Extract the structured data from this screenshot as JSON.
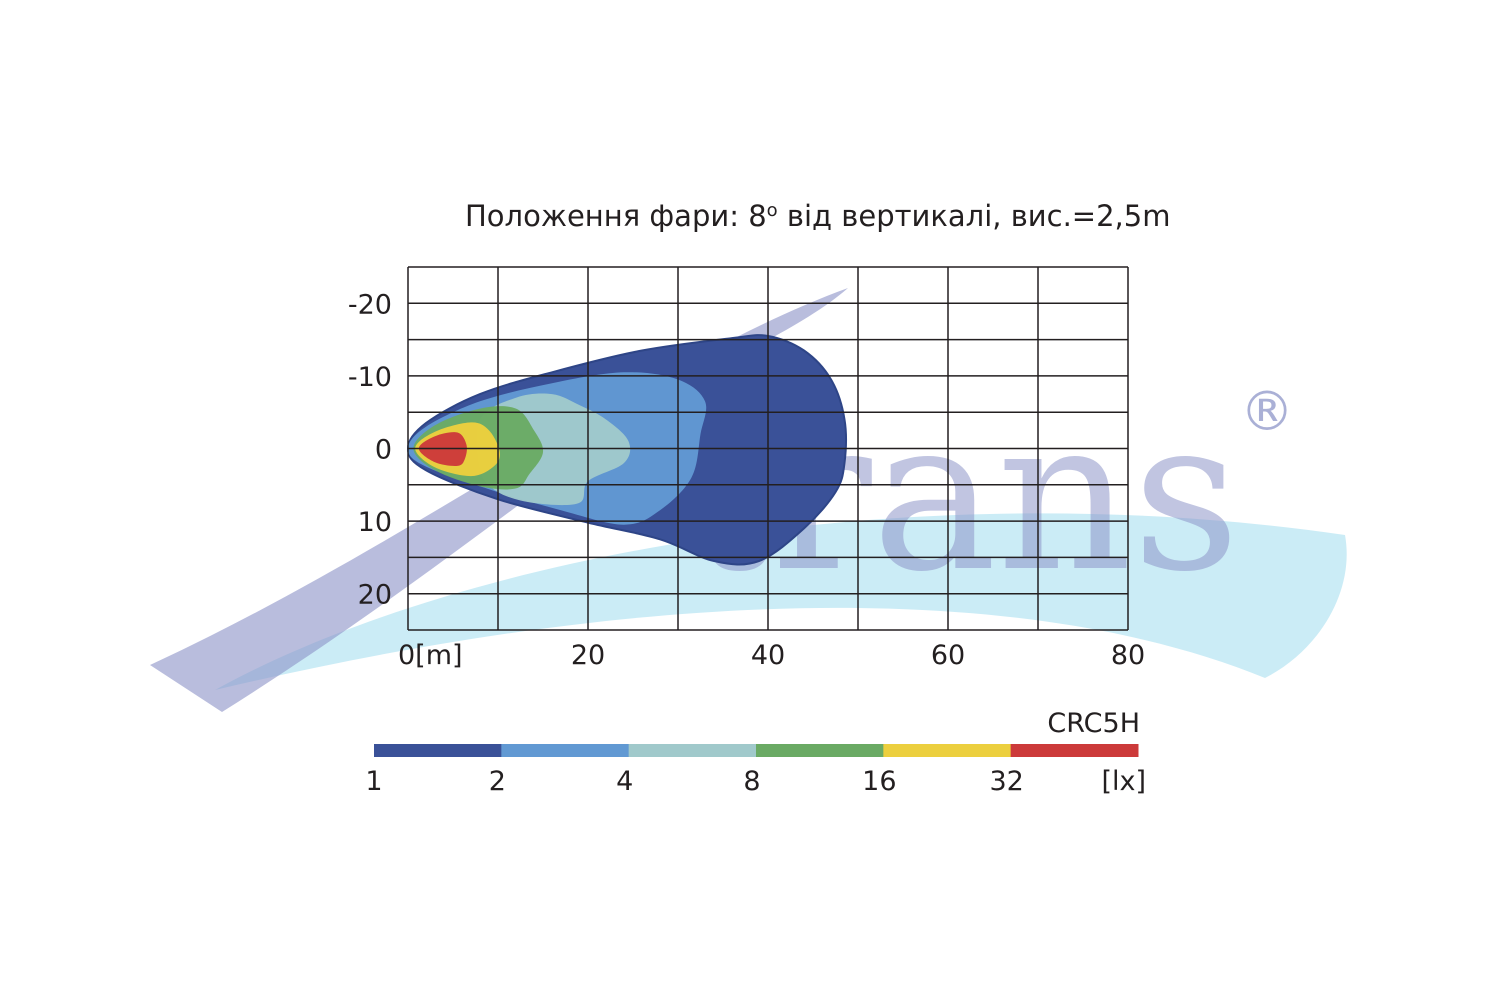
{
  "logo": {
    "text": "trans",
    "registered": "®",
    "colors": {
      "swoosh_purple": "#8e95c8",
      "swoosh_cyan": "#a9dff0",
      "text": "#8e95c8"
    }
  },
  "chart_data": {
    "type": "heatmap",
    "title": "Положення фари: 8o від вертикалі, вис.=2,5m",
    "title_main": "Положення фари: 8",
    "title_degree": "o",
    "title_rest": " від вертикалі, вис.=2,5m",
    "model": "CRC5H",
    "x_axis": {
      "range": [
        0,
        80
      ],
      "grid_step": 10,
      "ticks": [
        0,
        20,
        40,
        60,
        80
      ],
      "tick_labels": [
        "0[m]",
        "20",
        "40",
        "60",
        "80"
      ]
    },
    "y_axis": {
      "range": [
        -25,
        25
      ],
      "grid_step": 10,
      "ticks": [
        -20,
        -10,
        0,
        10,
        20
      ],
      "tick_labels": [
        "-20",
        "-10",
        "0",
        "10",
        "20"
      ]
    },
    "grid": true,
    "legend": {
      "placement": "bottom",
      "unit": "[lx]",
      "levels": [
        {
          "value": "1",
          "color": "#3a5198"
        },
        {
          "value": "2",
          "color": "#6199d3"
        },
        {
          "value": "4",
          "color": "#a0c9cb"
        },
        {
          "value": "8",
          "color": "#6aaa64"
        },
        {
          "value": "16",
          "color": "#eccf3e"
        },
        {
          "value": "32",
          "color": "#cc3a3a"
        }
      ]
    },
    "isolux_contours": [
      {
        "lux": 1,
        "color": "#3a5198",
        "points": [
          [
            0,
            0
          ],
          [
            2,
            -3.5
          ],
          [
            8,
            -7.5
          ],
          [
            16,
            -10.5
          ],
          [
            26,
            -13.5
          ],
          [
            36,
            -15.2
          ],
          [
            40,
            -15.5
          ],
          [
            44,
            -13.5
          ],
          [
            47,
            -9.5
          ],
          [
            48.5,
            -4
          ],
          [
            48.5,
            2
          ],
          [
            47.5,
            6
          ],
          [
            44,
            11
          ],
          [
            39,
            15.5
          ],
          [
            34,
            15.5
          ],
          [
            28,
            12.5
          ],
          [
            20,
            10.2
          ],
          [
            10,
            7
          ],
          [
            2,
            3
          ]
        ]
      },
      {
        "lux": 2,
        "color": "#6199d3",
        "points": [
          [
            0,
            0
          ],
          [
            2,
            -3
          ],
          [
            8,
            -6.5
          ],
          [
            16,
            -9
          ],
          [
            24,
            -10.5
          ],
          [
            30,
            -9.5
          ],
          [
            33,
            -6.5
          ],
          [
            32.5,
            -2
          ],
          [
            31.5,
            4
          ],
          [
            28,
            8.5
          ],
          [
            24,
            10.5
          ],
          [
            17,
            8.5
          ],
          [
            10,
            6
          ],
          [
            2,
            2.5
          ]
        ]
      },
      {
        "lux": 4,
        "color": "#a0c9cb",
        "points": [
          [
            8,
            -4
          ],
          [
            12,
            -7
          ],
          [
            16,
            -7.5
          ],
          [
            19,
            -6
          ],
          [
            22,
            -4
          ],
          [
            24.5,
            -1
          ],
          [
            24,
            2
          ],
          [
            20,
            4.5
          ],
          [
            19,
            7.5
          ],
          [
            14,
            7.5
          ],
          [
            10,
            6
          ],
          [
            8,
            3
          ]
        ]
      },
      {
        "lux": 8,
        "color": "#6aaa64",
        "points": [
          [
            0.6,
            0
          ],
          [
            3,
            -3.2
          ],
          [
            8,
            -5.5
          ],
          [
            12,
            -5.5
          ],
          [
            14,
            -2.5
          ],
          [
            15,
            0.5
          ],
          [
            13.5,
            3.5
          ],
          [
            12,
            5.5
          ],
          [
            8,
            5.2
          ],
          [
            3,
            3
          ]
        ]
      },
      {
        "lux": 16,
        "color": "#eccf3e",
        "points": [
          [
            0.8,
            0
          ],
          [
            3,
            -2.3
          ],
          [
            7,
            -3.6
          ],
          [
            9,
            -2.5
          ],
          [
            10.2,
            0.5
          ],
          [
            9.5,
            2.5
          ],
          [
            7,
            3.8
          ],
          [
            3,
            2.6
          ]
        ]
      },
      {
        "lux": 32,
        "color": "#cc3a3a",
        "points": [
          [
            1.2,
            0
          ],
          [
            3,
            -1.7
          ],
          [
            5.5,
            -2.2
          ],
          [
            6.5,
            -0.5
          ],
          [
            6.3,
            1.5
          ],
          [
            5.5,
            2.4
          ],
          [
            3,
            1.9
          ]
        ]
      }
    ]
  }
}
